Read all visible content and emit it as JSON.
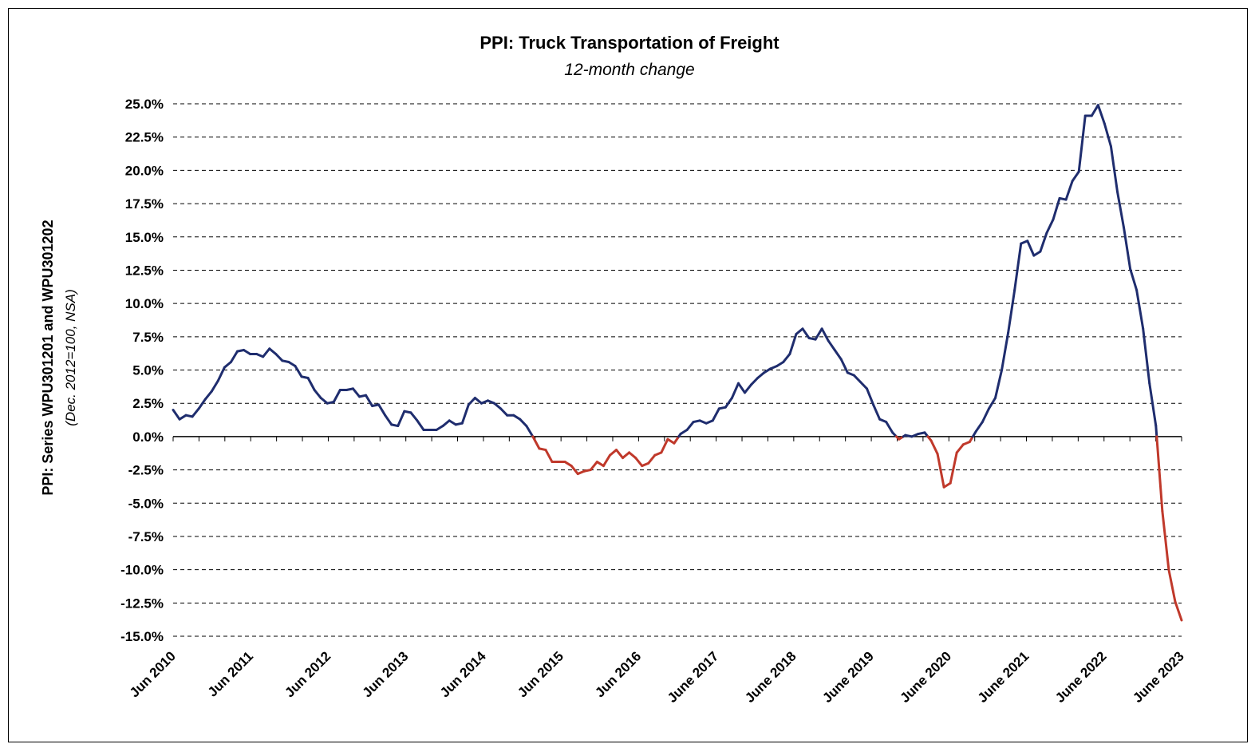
{
  "chart_data": {
    "type": "line",
    "title": "PPI: Truck Transportation of Freight",
    "subtitle": "12-month change",
    "ylabel": "PPI: Series WPU301201 and WPU301202",
    "ylabel_sub": "(Dec. 2012=100, NSA)",
    "ylim": [
      -15,
      25
    ],
    "y_ticks": [
      "25.0%",
      "22.5%",
      "20.0%",
      "17.5%",
      "15.0%",
      "12.5%",
      "10.0%",
      "7.5%",
      "5.0%",
      "2.5%",
      "0.0%",
      "-2.5%",
      "-5.0%",
      "-7.5%",
      "-10.0%",
      "-12.5%",
      "-15.0%"
    ],
    "x_ticks": [
      "Jun 2010",
      "Jun 2011",
      "Jun 2012",
      "Jun 2013",
      "Jun 2014",
      "Jun 2015",
      "Jun 2016",
      "June 2017",
      "June 2018",
      "June 2019",
      "June 2020",
      "June 2021",
      "June 2022",
      "June 2023"
    ],
    "grid": true,
    "colors": {
      "positive": "#1f2d6e",
      "negative": "#c0392b"
    },
    "x_start": "Jun 2010",
    "x_end": "Jun 2023",
    "values": [
      2.0,
      1.3,
      1.6,
      1.5,
      2.1,
      2.8,
      3.4,
      4.2,
      5.2,
      5.6,
      6.4,
      6.5,
      6.2,
      6.2,
      6.0,
      6.6,
      6.2,
      5.7,
      5.6,
      5.3,
      4.5,
      4.4,
      3.5,
      2.9,
      2.5,
      2.6,
      3.5,
      3.5,
      3.6,
      3.0,
      3.1,
      2.3,
      2.4,
      1.6,
      0.9,
      0.8,
      1.9,
      1.8,
      1.2,
      0.5,
      0.5,
      0.5,
      0.8,
      1.2,
      0.9,
      1.0,
      2.4,
      2.9,
      2.5,
      2.7,
      2.5,
      2.1,
      1.6,
      1.6,
      1.3,
      0.8,
      0.0,
      -0.9,
      -1.0,
      -1.9,
      -1.9,
      -1.9,
      -2.2,
      -2.8,
      -2.6,
      -2.5,
      -1.9,
      -2.2,
      -1.4,
      -1.0,
      -1.6,
      -1.2,
      -1.6,
      -2.2,
      -2.0,
      -1.4,
      -1.2,
      -0.2,
      -0.5,
      0.2,
      0.5,
      1.1,
      1.2,
      1.0,
      1.2,
      2.1,
      2.2,
      2.9,
      4.0,
      3.3,
      3.9,
      4.4,
      4.8,
      5.1,
      5.3,
      5.6,
      6.2,
      7.7,
      8.1,
      7.4,
      7.3,
      8.1,
      7.2,
      6.5,
      5.8,
      4.8,
      4.6,
      4.1,
      3.6,
      2.4,
      1.3,
      1.1,
      0.3,
      -0.2,
      0.1,
      0.0,
      0.2,
      0.3,
      -0.3,
      -1.3,
      -3.8,
      -3.5,
      -1.2,
      -0.6,
      -0.4,
      0.4,
      1.1,
      2.1,
      2.9,
      5.0,
      7.8,
      11.0,
      14.5,
      14.7,
      13.6,
      13.9,
      15.3,
      16.3,
      17.9,
      17.8,
      19.2,
      19.9,
      24.1,
      24.1,
      24.9,
      23.5,
      21.8,
      18.4,
      15.7,
      12.6,
      11.0,
      8.1,
      4.0,
      0.8,
      -5.6,
      -10.0,
      -12.4,
      -13.8
    ]
  }
}
